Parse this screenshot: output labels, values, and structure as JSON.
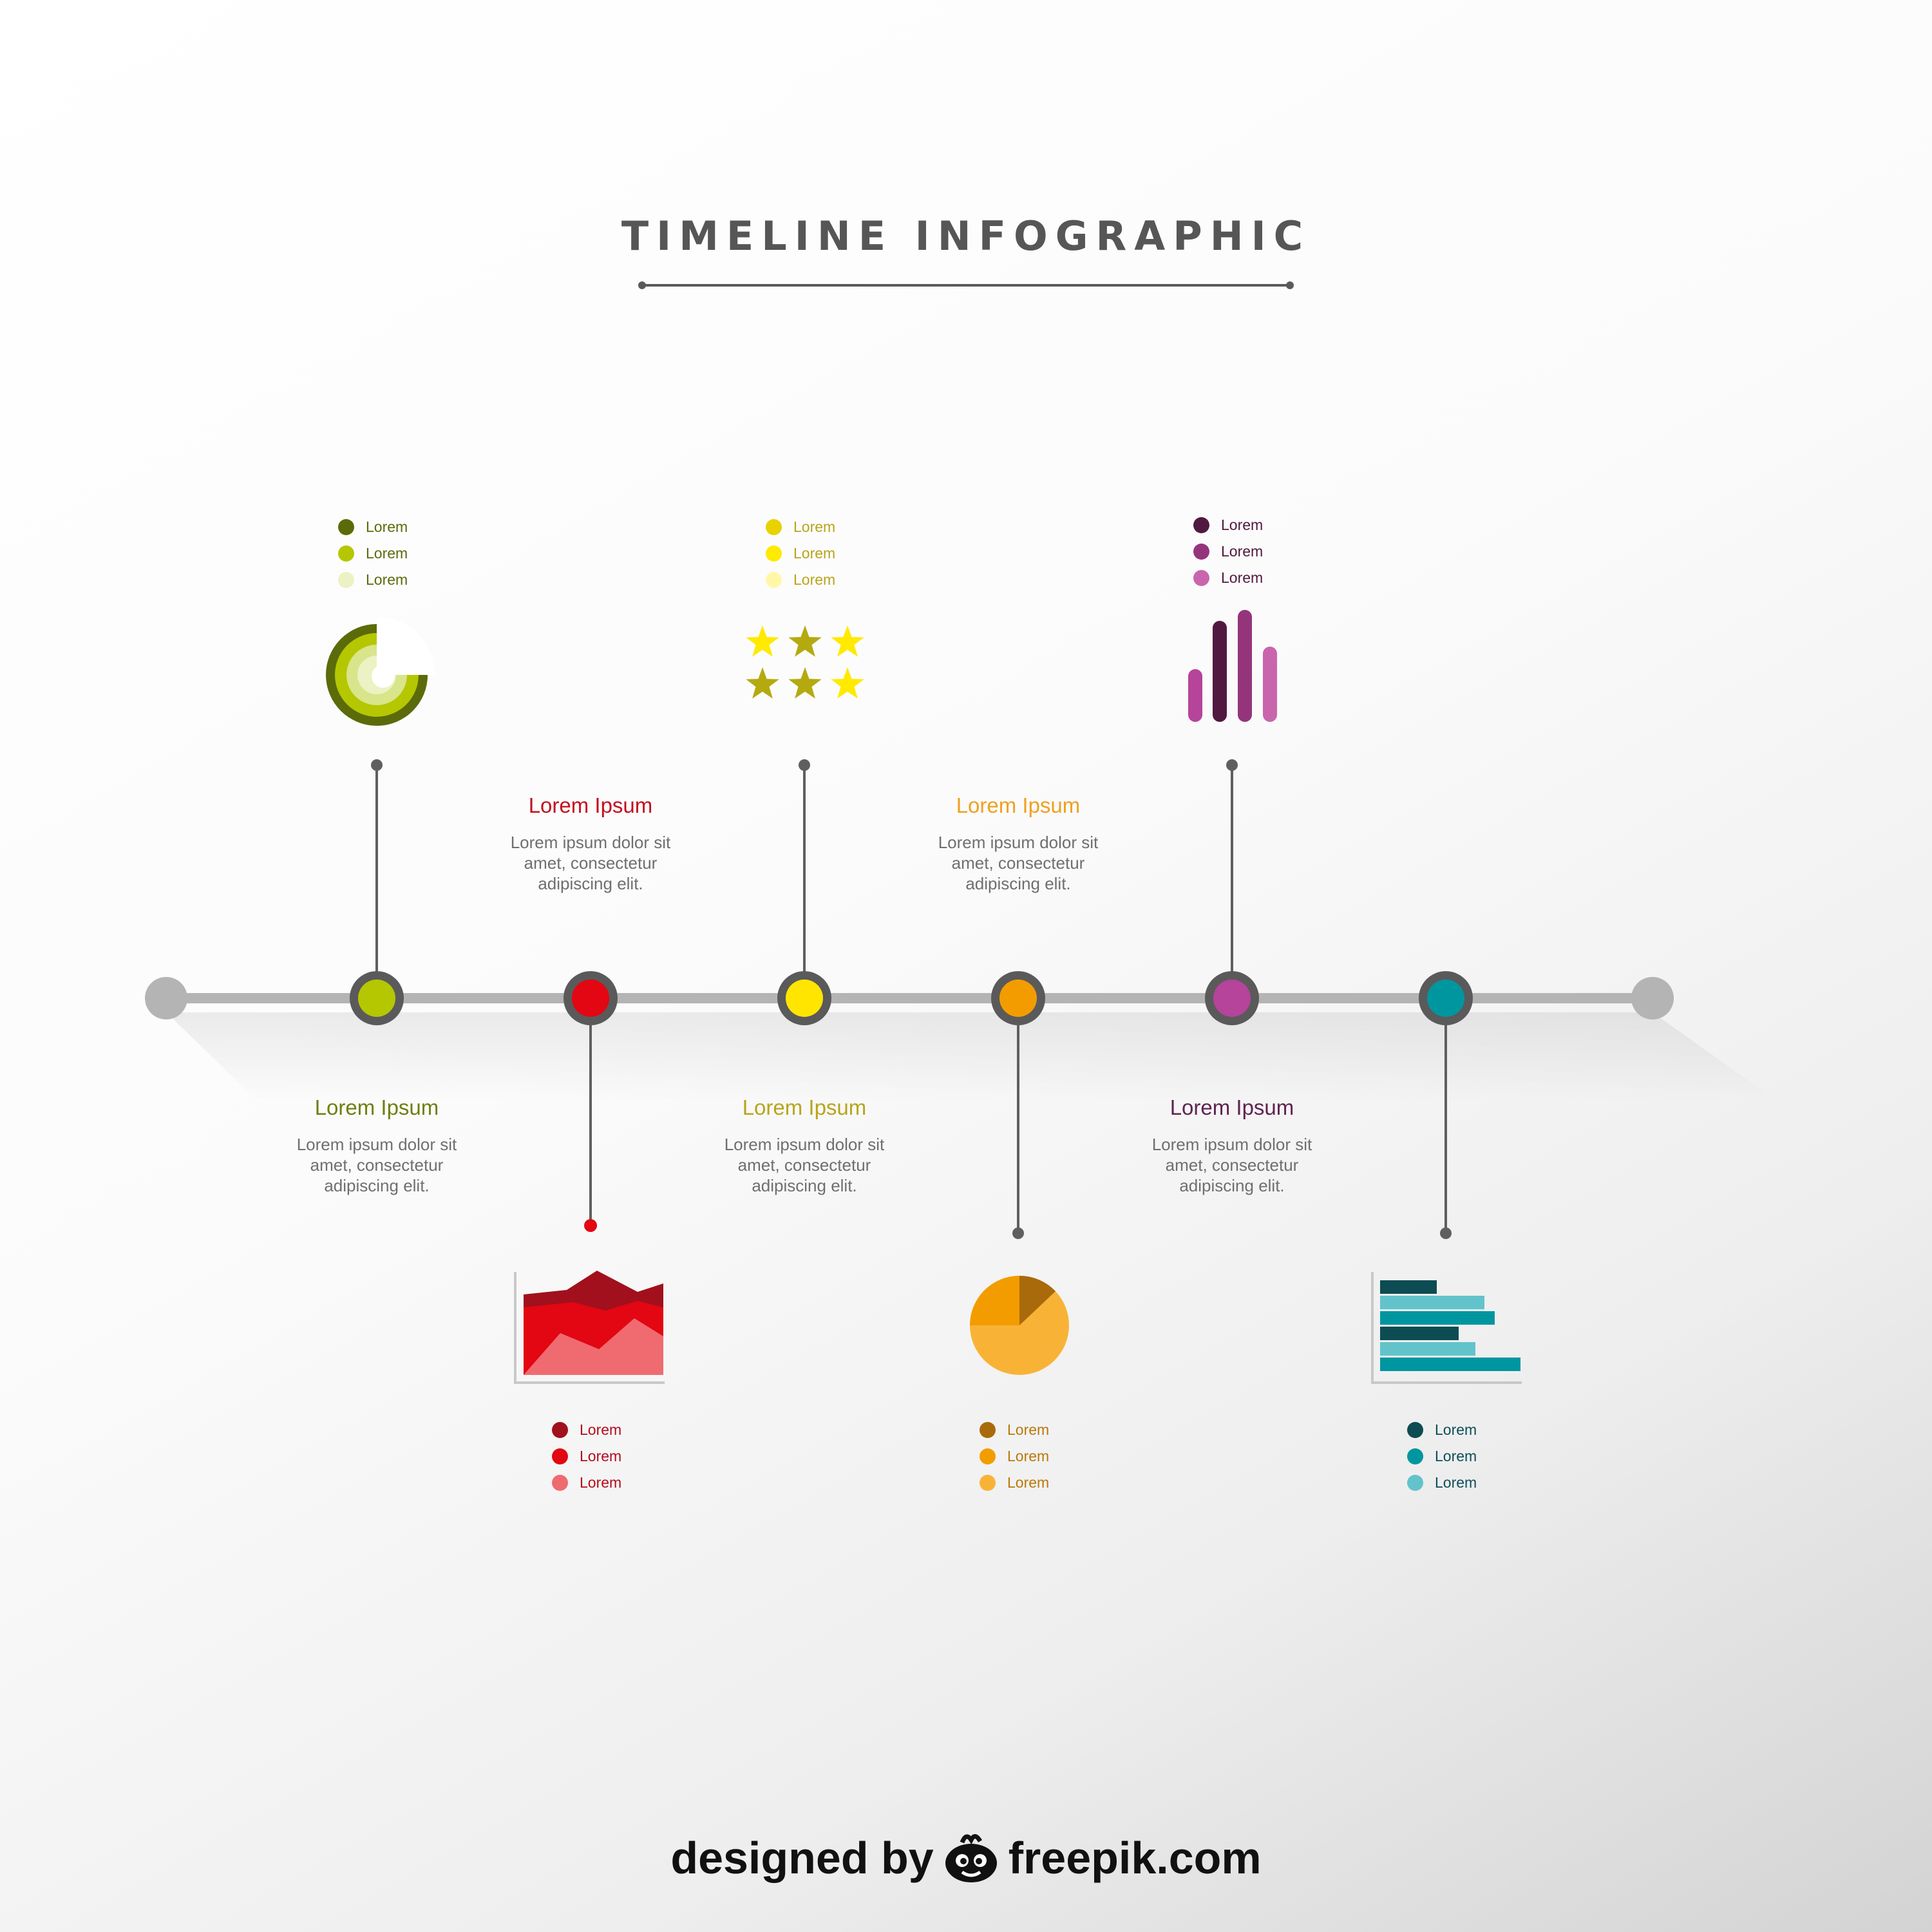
{
  "title": "TIMELINE INFOGRAPHIC",
  "colors": {
    "line": "#b4b4b4",
    "ring": "#5a5a5a",
    "connector": "#5f5f5f",
    "text": "#6f6f6f",
    "title": "#565656"
  },
  "steps": [
    {
      "id": "step-1",
      "position": "above",
      "color": "#b5c701",
      "heading_color": "#6f7f10",
      "icon": "concentric-rings-icon",
      "legend_colors": [
        "#5b6b0a",
        "#b5c701",
        "#ecf2c4"
      ],
      "legend_text_color": "#5b6b0a",
      "legend": [
        "Lorem",
        "Lorem",
        "Lorem"
      ],
      "heading": "Lorem Ipsum",
      "text": [
        "Lorem ipsum dolor sit",
        "amet, consectetur",
        "adipiscing elit."
      ]
    },
    {
      "id": "step-2",
      "position": "below",
      "color": "#e30613",
      "heading_color": "#c4101f",
      "icon": "area-chart-icon",
      "legend_colors": [
        "#a1101c",
        "#e30613",
        "#ef6b70"
      ],
      "legend_text_color": "#b20d1c",
      "legend": [
        "Lorem",
        "Lorem",
        "Lorem"
      ],
      "heading": "Lorem Ipsum",
      "text": [
        "Lorem ipsum dolor sit",
        "amet, consectetur",
        "adipiscing elit."
      ]
    },
    {
      "id": "step-3",
      "position": "above",
      "color": "#ffe500",
      "heading_color": "#b7a51b",
      "icon": "stars-icon",
      "legend_colors": [
        "#e8d200",
        "#ffea00",
        "#fff7a8"
      ],
      "legend_text_color": "#b7a51b",
      "legend": [
        "Lorem",
        "Lorem",
        "Lorem"
      ],
      "heading": "Lorem Ipsum",
      "text": [
        "Lorem ipsum dolor sit",
        "amet, consectetur",
        "adipiscing elit."
      ]
    },
    {
      "id": "step-4",
      "position": "below",
      "color": "#f39c00",
      "heading_color": "#f0a020",
      "icon": "pie-chart-icon",
      "legend_colors": [
        "#a86a0b",
        "#f39c00",
        "#f8b337"
      ],
      "legend_text_color": "#b8790b",
      "legend": [
        "Lorem",
        "Lorem",
        "Lorem"
      ],
      "heading": "Lorem Ipsum",
      "text": [
        "Lorem ipsum dolor sit",
        "amet, consectetur",
        "adipiscing elit."
      ]
    },
    {
      "id": "step-5",
      "position": "above",
      "color": "#b5449a",
      "heading_color": "#5e2451",
      "icon": "vertical-bars-icon",
      "legend_colors": [
        "#51193f",
        "#94357c",
        "#c965ad"
      ],
      "legend_text_color": "#51193f",
      "legend": [
        "Lorem",
        "Lorem",
        "Lorem"
      ],
      "heading": "Lorem Ipsum",
      "text": [
        "Lorem ipsum dolor sit",
        "amet, consectetur",
        "adipiscing elit."
      ]
    },
    {
      "id": "step-6",
      "position": "below",
      "color": "#0096a0",
      "heading_color": "#0e6f78",
      "icon": "horizontal-bar-chart-icon",
      "legend_colors": [
        "#0c4c52",
        "#0096a0",
        "#62c3cb"
      ],
      "legend_text_color": "#0d4f57",
      "legend": [
        "Lorem",
        "Lorem",
        "Lorem"
      ],
      "heading": "",
      "text": []
    }
  ],
  "credit": {
    "left": "designed by",
    "right": "freepik.com"
  }
}
